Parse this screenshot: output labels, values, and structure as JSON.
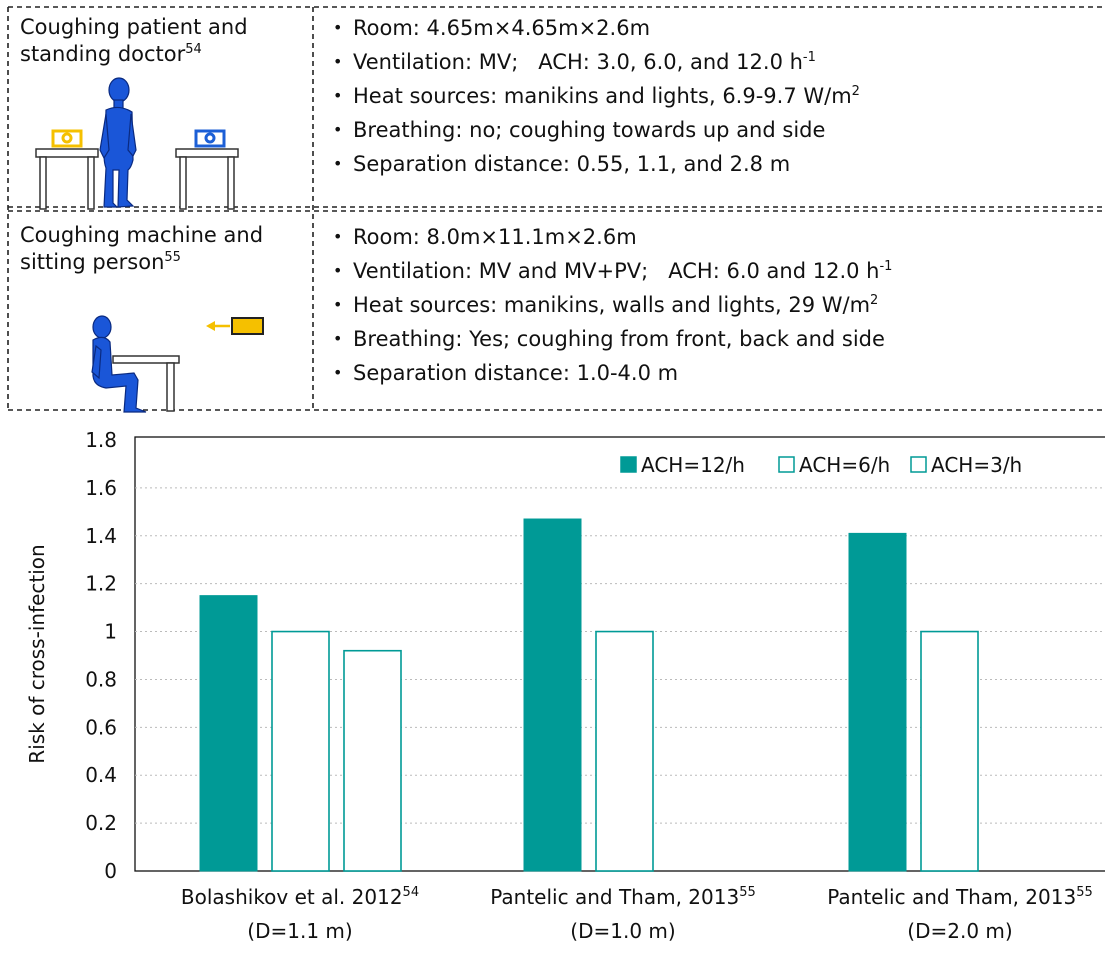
{
  "study_table": {
    "rows": [
      {
        "case_line1": "Coughing patient and",
        "case_line2": "standing doctor",
        "case_ref": "54",
        "bullets": [
          {
            "text": "Room: 4.65m×4.65m×2.6m",
            "sup": ""
          },
          {
            "text": "Ventilation: MV;   ACH: 3.0, 6.0, and 12.0 h",
            "sup": "-1"
          },
          {
            "text": "Heat sources: manikins and lights, 6.9-9.7 W/m",
            "sup": "2"
          },
          {
            "text": "Breathing: no; coughing towards up and side",
            "sup": ""
          },
          {
            "text": "Separation distance: 0.55, 1.1, and 2.8 m",
            "sup": ""
          }
        ]
      },
      {
        "case_line1": "Coughing machine and",
        "case_line2": "sitting person",
        "case_ref": "55",
        "bullets": [
          {
            "text": "Room: 8.0m×11.1m×2.6m",
            "sup": ""
          },
          {
            "text": "Ventilation: MV and MV+PV;   ACH: 6.0 and 12.0 h",
            "sup": "-1"
          },
          {
            "text": "Heat sources: manikins, walls and lights, 29 W/m",
            "sup": "2"
          },
          {
            "text": "Breathing: Yes; coughing from front, back and side",
            "sup": ""
          },
          {
            "text": "Separation distance: 1.0-4.0 m",
            "sup": ""
          }
        ]
      }
    ]
  },
  "colors": {
    "teal": "#009a96",
    "yellow": "#f5c000",
    "blue": "#1c5fd6",
    "figure_blue": "#1a56d8"
  },
  "icons": [
    "table-icon",
    "laptop-icon",
    "standing-person-icon",
    "seated-person-icon",
    "cough-machine-icon",
    "arrow-icon"
  ],
  "chart_data": {
    "type": "bar",
    "categories": [
      {
        "line1": "Bolashikov et al. 2012",
        "sup": "54",
        "line2": "(D=1.1 m)"
      },
      {
        "line1": "Pantelic and Tham, 2013",
        "sup": "55",
        "line2": "(D=1.0 m)"
      },
      {
        "line1": "Pantelic and Tham, 2013",
        "sup": "55",
        "line2": "(D=2.0 m)"
      }
    ],
    "series": [
      {
        "name": "ACH=12/h",
        "values": [
          1.15,
          1.47,
          1.41
        ],
        "style": "filled"
      },
      {
        "name": "ACH=6/h",
        "values": [
          1.0,
          1.0,
          1.0
        ],
        "style": "outline"
      },
      {
        "name": "ACH=3/h",
        "values": [
          0.92,
          null,
          null
        ],
        "style": "outline"
      }
    ],
    "ylabel": "Risk of cross-infection",
    "ylim": [
      0,
      1.8
    ],
    "yticks": [
      "0",
      "0.2",
      "0.4",
      "0.6",
      "0.8",
      "1",
      "1.2",
      "1.4",
      "1.6",
      "1.8"
    ],
    "grid": "horizontal dotted",
    "legend_position": "top-right"
  }
}
